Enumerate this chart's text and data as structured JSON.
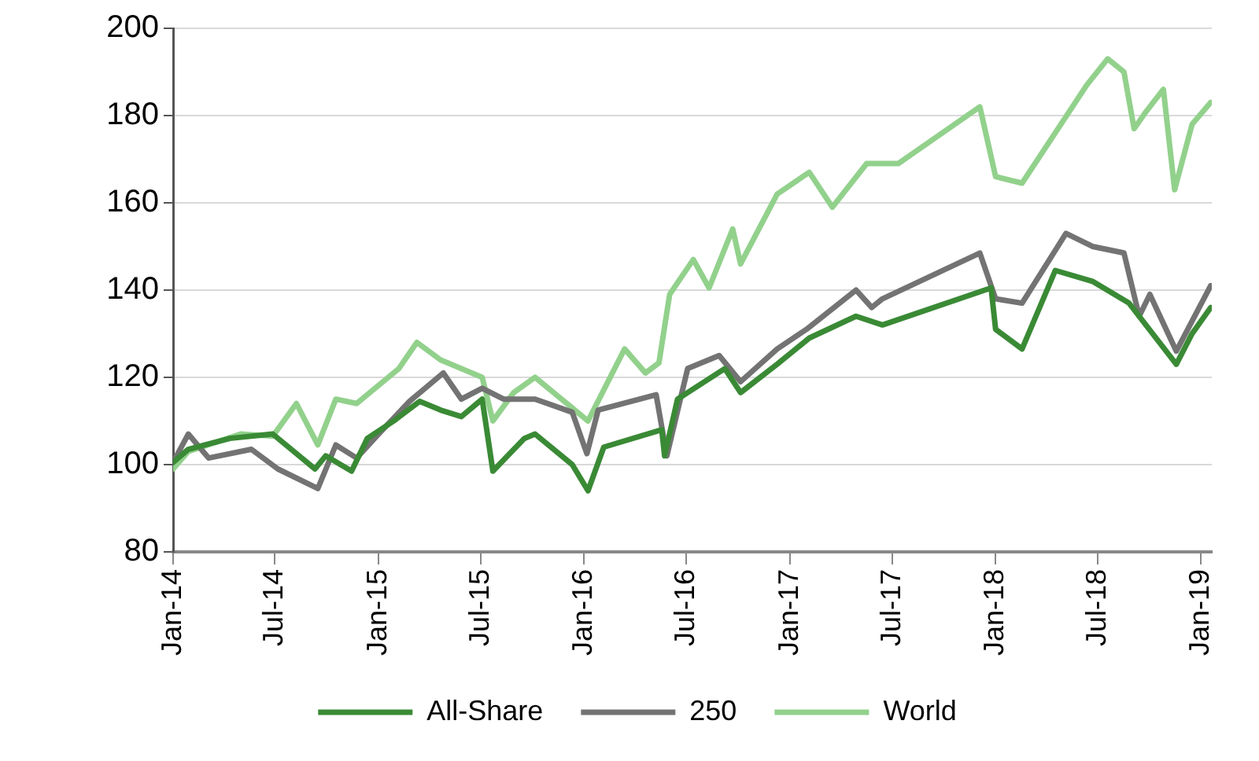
{
  "chart_data": {
    "type": "line",
    "xlim": [
      "2014-01-01",
      "2019-01-20"
    ],
    "xticks": [
      {
        "value": "2014-01-01",
        "label": "Jan-14"
      },
      {
        "value": "2014-07-01",
        "label": "Jul-14"
      },
      {
        "value": "2015-01-01",
        "label": "Jan-15"
      },
      {
        "value": "2015-07-01",
        "label": "Jul-15"
      },
      {
        "value": "2016-01-01",
        "label": "Jan-16"
      },
      {
        "value": "2016-07-01",
        "label": "Jul-16"
      },
      {
        "value": "2017-01-01",
        "label": "Jan-17"
      },
      {
        "value": "2017-07-01",
        "label": "Jul-17"
      },
      {
        "value": "2018-01-01",
        "label": "Jan-18"
      },
      {
        "value": "2018-07-01",
        "label": "Jul-18"
      },
      {
        "value": "2019-01-01",
        "label": "Jan-19"
      }
    ],
    "ylim": [
      80,
      200
    ],
    "yticks": [
      80,
      100,
      120,
      140,
      160,
      180,
      200
    ],
    "grid": "y",
    "legend": "bottom",
    "marker": "none",
    "line_style": "solid",
    "series": [
      {
        "name": "All-Share",
        "color": "#3a8a35",
        "x": [
          "2014-01-01",
          "2014-01-28",
          "2014-04-12",
          "2014-06-27",
          "2014-09-10",
          "2014-09-29",
          "2014-11-14",
          "2014-12-12",
          "2015-01-28",
          "2015-03-15",
          "2015-04-21",
          "2015-05-28",
          "2015-07-04",
          "2015-07-23",
          "2015-09-17",
          "2015-10-06",
          "2015-12-11",
          "2016-01-08",
          "2016-02-05",
          "2016-05-18",
          "2016-05-23",
          "2016-06-15",
          "2016-09-07",
          "2016-10-05",
          "2016-12-09",
          "2017-02-04",
          "2017-04-28",
          "2017-06-14",
          "2017-12-24",
          "2018-01-01",
          "2018-02-17",
          "2018-04-17",
          "2018-06-22",
          "2018-08-26",
          "2018-11-18",
          "2018-12-16",
          "2019-01-18"
        ],
        "values": [
          100.5,
          103.5,
          106,
          107,
          99,
          102,
          98.5,
          106,
          110,
          114.5,
          112.5,
          111,
          115,
          98.5,
          106,
          107,
          100,
          94,
          104,
          108,
          102,
          115,
          122,
          116.5,
          123,
          129,
          134,
          132,
          140.5,
          131,
          126.5,
          144.5,
          142,
          137,
          123,
          130,
          136
        ]
      },
      {
        "name": "250",
        "color": "#737373",
        "x": [
          "2014-01-01",
          "2014-01-28",
          "2014-03-05",
          "2014-05-20",
          "2014-07-06",
          "2014-09-15",
          "2014-10-17",
          "2014-11-23",
          "2015-01-01",
          "2015-02-25",
          "2015-04-26",
          "2015-05-28",
          "2015-07-04",
          "2015-08-11",
          "2015-10-06",
          "2015-12-11",
          "2016-01-06",
          "2016-01-26",
          "2016-05-08",
          "2016-05-27",
          "2016-07-03",
          "2016-08-28",
          "2016-10-05",
          "2016-12-09",
          "2017-01-30",
          "2017-04-28",
          "2017-05-26",
          "2017-06-14",
          "2017-12-04",
          "2018-01-01",
          "2018-02-17",
          "2018-05-06",
          "2018-06-22",
          "2018-08-17",
          "2018-09-13",
          "2018-10-02",
          "2018-11-18",
          "2019-01-18"
        ],
        "values": [
          100.5,
          107,
          101.5,
          103.5,
          99,
          94.5,
          104.5,
          101.5,
          107,
          114.5,
          121,
          115,
          117.5,
          115,
          115,
          112,
          102.5,
          112.5,
          116,
          102,
          122,
          125,
          119,
          126.5,
          131,
          140,
          136,
          138,
          148.5,
          138,
          137,
          153,
          150,
          148.5,
          134,
          139,
          126,
          141
        ]
      },
      {
        "name": "World",
        "color": "#92d18c",
        "x": [
          "2014-01-01",
          "2014-01-28",
          "2014-05-01",
          "2014-06-27",
          "2014-08-08",
          "2014-09-15",
          "2014-10-17",
          "2014-11-23",
          "2015-02-06",
          "2015-03-10",
          "2015-04-21",
          "2015-07-04",
          "2015-07-23",
          "2015-08-29",
          "2015-10-06",
          "2016-01-08",
          "2016-03-13",
          "2016-04-19",
          "2016-05-13",
          "2016-06-01",
          "2016-07-13",
          "2016-08-10",
          "2016-09-21",
          "2016-10-05",
          "2016-12-09",
          "2017-02-04",
          "2017-03-17",
          "2017-05-17",
          "2017-07-12",
          "2017-12-04",
          "2018-01-01",
          "2018-02-17",
          "2018-06-12",
          "2018-07-19",
          "2018-08-17",
          "2018-09-04",
          "2018-09-23",
          "2018-10-26",
          "2018-11-15",
          "2018-12-16",
          "2019-01-18"
        ],
        "values": [
          99,
          103,
          107,
          106.5,
          114,
          104.5,
          115,
          114,
          122,
          128,
          124,
          120,
          110,
          116.5,
          120,
          110,
          126.5,
          121,
          123.3,
          139,
          147,
          140.5,
          154,
          146,
          162,
          167,
          159,
          169,
          169,
          182,
          166,
          164.5,
          187,
          193,
          190,
          177,
          180.5,
          186,
          163,
          178,
          183
        ]
      }
    ]
  }
}
